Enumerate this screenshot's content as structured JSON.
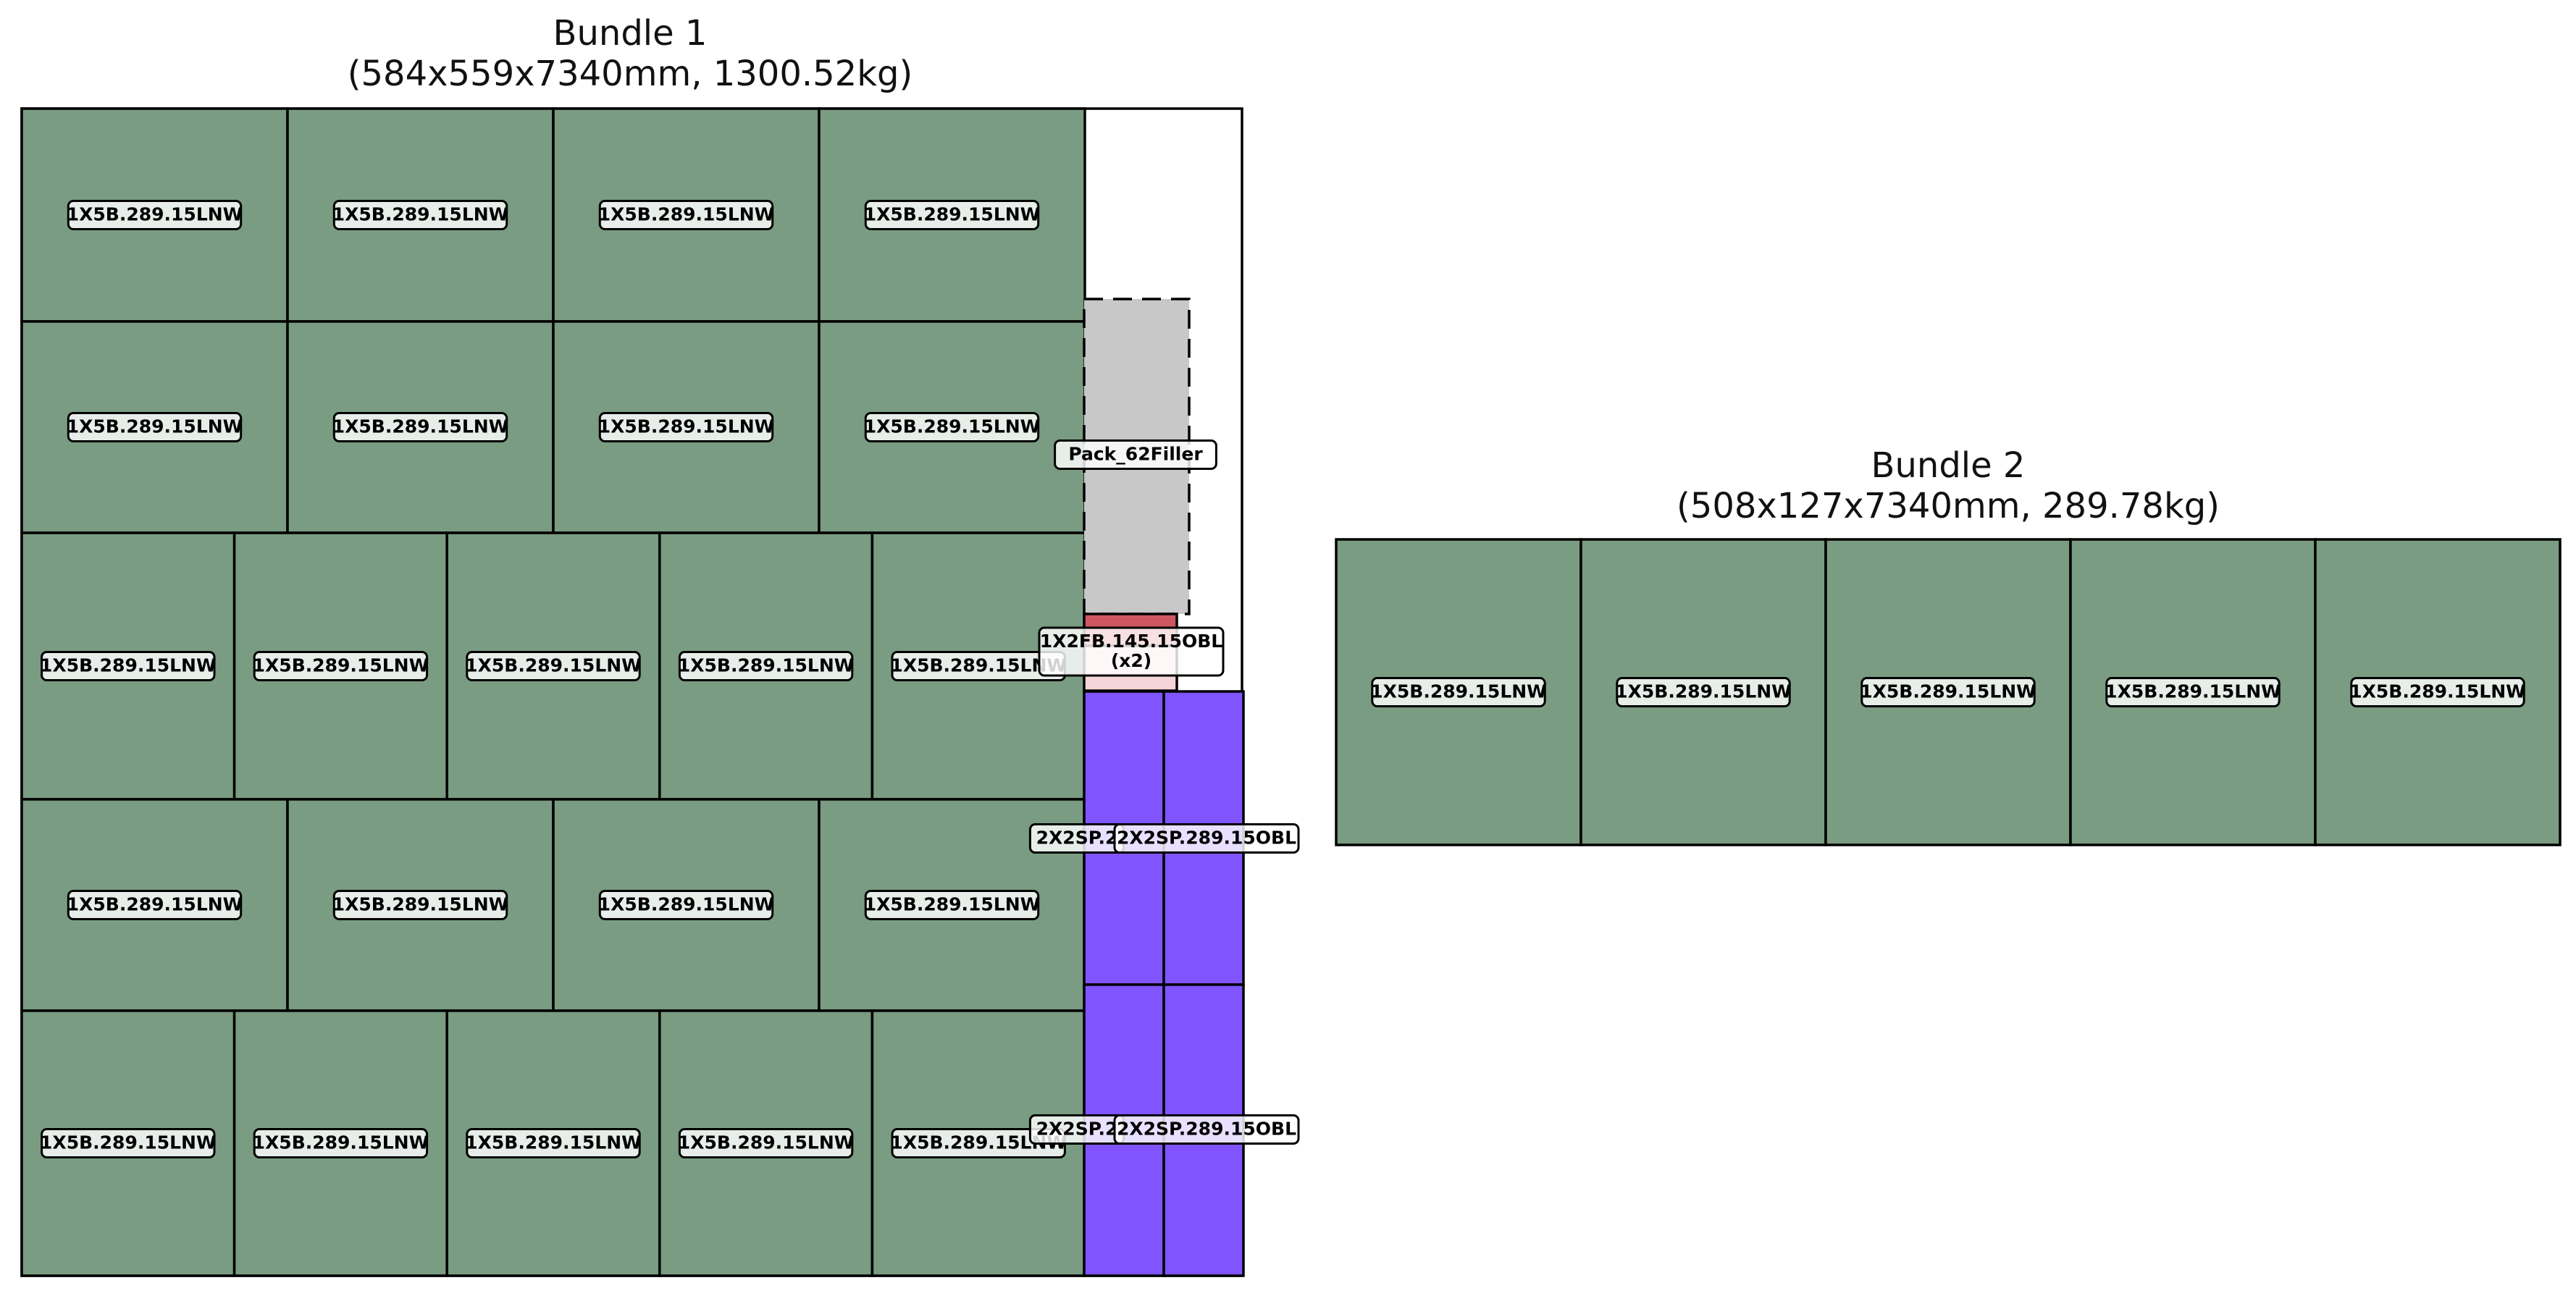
{
  "colors": {
    "lnw": "#7a9c82",
    "obl_purple": "#8055ff",
    "filler_fill": "#c8c8c8",
    "filler_dash": "#e8414a",
    "flat_bar": "#cf5761",
    "flat_bar_light": "#f4d4d6",
    "stroke": "#000000",
    "background": "#ffffff"
  },
  "bundles": [
    {
      "title": "Bundle 1",
      "subtitle": "(584x559x7340mm, 1300.52kg)"
    },
    {
      "title": "Bundle 2",
      "subtitle": "(508x127x7340mm, 289.78kg)"
    }
  ],
  "labels": {
    "lnw": "1X5B.289.15LNW",
    "filler": "Pack_62Filler",
    "flat_bar": "1X2FB.145.15OBL",
    "flat_bar_qty": "(x2)",
    "obl": "2X2SP.289.15OBL",
    "obl_truncated": "2X2SP.2"
  }
}
